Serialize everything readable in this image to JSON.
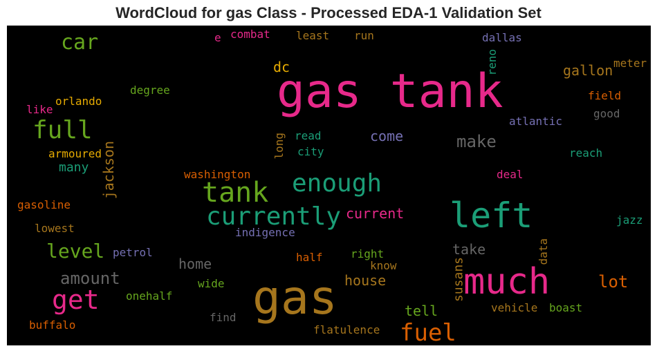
{
  "title": "WordCloud for gas Class - Processed EDA-1 Validation Set",
  "chart_data": {
    "type": "wordcloud",
    "background": "#000000",
    "colormap": "Dark2",
    "words": [
      {
        "text": "gas tank",
        "color": "#e7298a"
      },
      {
        "text": "gas",
        "color": "#a6761d"
      },
      {
        "text": "much",
        "color": "#e7298a"
      },
      {
        "text": "left",
        "color": "#1b9e77"
      },
      {
        "text": "tank",
        "color": "#66a61e"
      },
      {
        "text": "currently",
        "color": "#1b9e77"
      },
      {
        "text": "enough",
        "color": "#1b9e77"
      },
      {
        "text": "full",
        "color": "#66a61e"
      },
      {
        "text": "get",
        "color": "#e7298a"
      },
      {
        "text": "fuel",
        "color": "#d95f02"
      },
      {
        "text": "car",
        "color": "#66a61e"
      },
      {
        "text": "level",
        "color": "#66a61e"
      },
      {
        "text": "amount",
        "color": "#666666"
      },
      {
        "text": "make",
        "color": "#666666"
      },
      {
        "text": "lot",
        "color": "#d95f02"
      },
      {
        "text": "gallon",
        "color": "#a6761d"
      },
      {
        "text": "current",
        "color": "#e7298a"
      },
      {
        "text": "house",
        "color": "#a6761d"
      },
      {
        "text": "take",
        "color": "#666666"
      },
      {
        "text": "home",
        "color": "#666666"
      },
      {
        "text": "come",
        "color": "#7570b3"
      },
      {
        "text": "tell",
        "color": "#66a61e"
      },
      {
        "text": "dc",
        "color": "#e6ab02"
      },
      {
        "text": "jackson",
        "color": "#a6761d"
      },
      {
        "text": "susans",
        "color": "#a6761d"
      },
      {
        "text": "many",
        "color": "#1b9e77"
      },
      {
        "text": "armoured",
        "color": "#e6ab02"
      },
      {
        "text": "orlando",
        "color": "#e6ab02"
      },
      {
        "text": "degree",
        "color": "#66a61e"
      },
      {
        "text": "like",
        "color": "#e7298a"
      },
      {
        "text": "gasoline",
        "color": "#d95f02"
      },
      {
        "text": "lowest",
        "color": "#a6761d"
      },
      {
        "text": "petrol",
        "color": "#7570b3"
      },
      {
        "text": "onehalf",
        "color": "#66a61e"
      },
      {
        "text": "buffalo",
        "color": "#d95f02"
      },
      {
        "text": "wide",
        "color": "#66a61e"
      },
      {
        "text": "find",
        "color": "#666666"
      },
      {
        "text": "half",
        "color": "#d95f02"
      },
      {
        "text": "right",
        "color": "#66a61e"
      },
      {
        "text": "know",
        "color": "#a6761d"
      },
      {
        "text": "flatulence",
        "color": "#a6761d"
      },
      {
        "text": "indigence",
        "color": "#7570b3"
      },
      {
        "text": "washington",
        "color": "#d95f02"
      },
      {
        "text": "long",
        "color": "#a6761d"
      },
      {
        "text": "read",
        "color": "#1b9e77"
      },
      {
        "text": "city",
        "color": "#1b9e77"
      },
      {
        "text": "combat",
        "color": "#e7298a"
      },
      {
        "text": "e",
        "color": "#e7298a"
      },
      {
        "text": "least",
        "color": "#a6761d"
      },
      {
        "text": "run",
        "color": "#a6761d"
      },
      {
        "text": "dallas",
        "color": "#7570b3"
      },
      {
        "text": "reno",
        "color": "#1b9e77"
      },
      {
        "text": "meter",
        "color": "#a6761d"
      },
      {
        "text": "field",
        "color": "#d95f02"
      },
      {
        "text": "good",
        "color": "#666666"
      },
      {
        "text": "atlantic",
        "color": "#7570b3"
      },
      {
        "text": "reach",
        "color": "#1b9e77"
      },
      {
        "text": "deal",
        "color": "#e7298a"
      },
      {
        "text": "jazz",
        "color": "#1b9e77"
      },
      {
        "text": "data",
        "color": "#a6761d"
      },
      {
        "text": "vehicle",
        "color": "#a6761d"
      },
      {
        "text": "boast",
        "color": "#66a61e"
      }
    ]
  }
}
